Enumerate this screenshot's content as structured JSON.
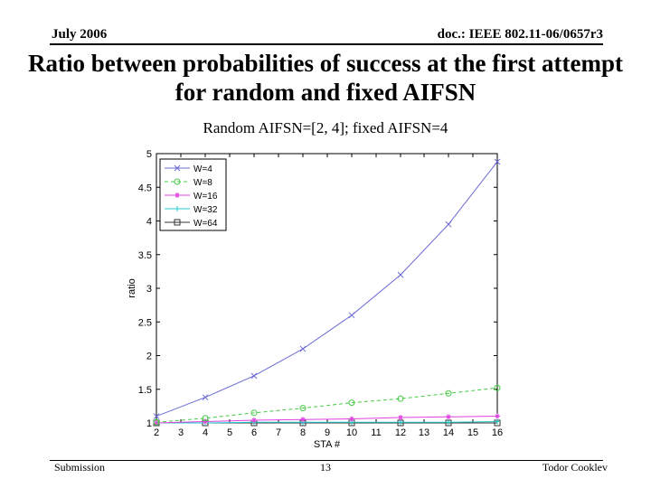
{
  "header": {
    "date": "July 2006",
    "doc_id": "doc.: IEEE 802.11-06/0657r3"
  },
  "slide": {
    "title": "Ratio between probabilities of success at the first attempt for random and fixed AIFSN",
    "subtitle": "Random AIFSN=[2, 4]; fixed AIFSN=4"
  },
  "footer": {
    "left": "Submission",
    "page": "13",
    "author": "Todor Cooklev"
  },
  "chart_data": {
    "type": "line",
    "xlabel": "STA #",
    "ylabel": "ratio",
    "xlim": [
      2,
      16
    ],
    "ylim": [
      1,
      5
    ],
    "x_ticks": [
      "2",
      "3",
      "4",
      "5",
      "6",
      "7",
      "8",
      "9",
      "10",
      "11",
      "12",
      "13",
      "14",
      "15",
      "16"
    ],
    "y_ticks": [
      "1",
      "1.5",
      "2",
      "2.5",
      "3",
      "3.5",
      "4",
      "4.5",
      "5"
    ],
    "x": [
      2,
      4,
      6,
      8,
      10,
      12,
      14,
      16
    ],
    "grid": false,
    "legend_position": "top-left",
    "series": [
      {
        "name": "W=4",
        "color": "#6b6bd6",
        "marker": "x",
        "values": [
          1.1,
          1.38,
          1.7,
          2.1,
          2.6,
          3.2,
          3.95,
          4.88
        ]
      },
      {
        "name": "W=8",
        "color": "#44cc44",
        "marker": "o",
        "values": [
          1.01,
          1.07,
          1.15,
          1.22,
          1.3,
          1.36,
          1.44,
          1.52
        ]
      },
      {
        "name": "W=16",
        "color": "#e040e0",
        "marker": "*",
        "values": [
          1.0,
          1.02,
          1.04,
          1.05,
          1.06,
          1.08,
          1.09,
          1.1
        ]
      },
      {
        "name": "W=32",
        "color": "#22cccc",
        "marker": "+",
        "values": [
          1.0,
          1.0,
          1.01,
          1.01,
          1.01,
          1.01,
          1.01,
          1.02
        ]
      },
      {
        "name": "W=64",
        "color": "#333333",
        "marker": "s",
        "values": [
          1.0,
          1.0,
          1.0,
          1.0,
          1.0,
          1.0,
          1.0,
          1.0
        ]
      }
    ]
  }
}
